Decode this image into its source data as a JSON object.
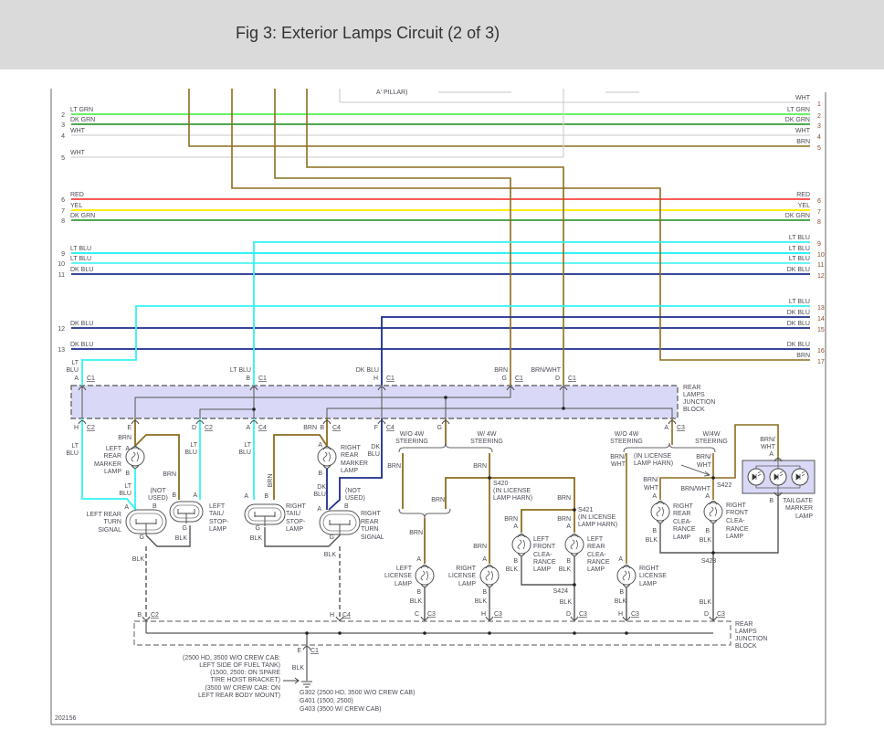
{
  "header": {
    "title": "Fig 3: Exterior Lamps Circuit (2 of 3)"
  },
  "colors": {
    "wht": "#dcdcdc",
    "lt_grn": "#33ee33",
    "dk_grn": "#138a13",
    "brn": "#8c6d1f",
    "red": "#ff2020",
    "yel": "#ffee11",
    "lt_blu": "#33f2f2",
    "dk_blu": "#1c2c8c",
    "blk": "#555555",
    "junction_fill": "#d9d9f7",
    "header_bg": "#dadada"
  },
  "left_wires": [
    {
      "num": "2",
      "label": "LT GRN"
    },
    {
      "num": "3",
      "label": "DK GRN"
    },
    {
      "num": "4",
      "label": "WHT"
    },
    {
      "num": "5",
      "label": "WHT"
    },
    {
      "num": "6",
      "label": "RED"
    },
    {
      "num": "7",
      "label": "YEL"
    },
    {
      "num": "8",
      "label": "DK GRN"
    },
    {
      "num": "9",
      "label": "LT BLU"
    },
    {
      "num": "10",
      "label": "LT BLU"
    },
    {
      "num": "11",
      "label": "DK BLU"
    },
    {
      "num": "12",
      "label": "DK BLU"
    },
    {
      "num": "13",
      "label": "DK BLU"
    }
  ],
  "right_wires": [
    {
      "num": "1",
      "label": "WHT"
    },
    {
      "num": "2",
      "label": "LT GRN"
    },
    {
      "num": "3",
      "label": "DK GRN"
    },
    {
      "num": "4",
      "label": "WHT"
    },
    {
      "num": "5",
      "label": "BRN"
    },
    {
      "num": "6",
      "label": "RED"
    },
    {
      "num": "7",
      "label": "YEL"
    },
    {
      "num": "8",
      "label": "DK GRN"
    },
    {
      "num": "9",
      "label": "LT BLU"
    },
    {
      "num": "10",
      "label": "LT BLU"
    },
    {
      "num": "11",
      "label": "LT BLU"
    },
    {
      "num": "12",
      "label": "DK BLU"
    },
    {
      "num": "13",
      "label": "LT BLU"
    },
    {
      "num": "14",
      "label": "DK BLU"
    },
    {
      "num": "15",
      "label": "DK BLU"
    },
    {
      "num": "16",
      "label": "DK BLU"
    },
    {
      "num": "17",
      "label": "BRN"
    }
  ],
  "a_pillar_note": "A' PILLAR)",
  "junction": [
    "LT",
    "BLU",
    "A",
    "C1",
    "LT BLU",
    "B",
    "C1",
    "DK BLU",
    "H",
    "C1",
    "BRN",
    "G",
    "C1",
    "BRN/WHT",
    "D",
    "C1",
    "REAR",
    "LAMPS",
    "JUNCTION",
    "BLOCK",
    "H",
    "C2",
    "E",
    "D",
    "C2",
    "A",
    "C4",
    "BRN",
    "B",
    "C4",
    "F",
    "C4",
    "G",
    "A",
    "C3"
  ],
  "left_section": [
    "LT",
    "BLU",
    "BRN",
    "A",
    "LEFT",
    "REAR",
    "MARKER",
    "LAMP",
    "B",
    "LT",
    "BLU",
    "BRN",
    "LT",
    "BLU",
    "(NOT",
    "USED)",
    "B",
    "A",
    "A",
    "B",
    "LEFT REAR",
    "TURN",
    "SIGNAL",
    "LEFT",
    "TAIL/",
    "STOP-",
    "LAMP",
    "G",
    "BLK",
    "G",
    "BLK"
  ],
  "right_section": [
    "LT",
    "BLU",
    "BRN",
    "A",
    "B",
    "RIGHT",
    "TAIL/",
    "STOP-",
    "LAMP",
    "G",
    "BLK",
    "A",
    "RIGHT",
    "REAR",
    "MARKER",
    "LAMP",
    "B",
    "DK",
    "BLU",
    "DK",
    "BLU",
    "(NOT",
    "USED)",
    "A",
    "B",
    "RIGHT",
    "REAR",
    "TURN",
    "SIGNAL",
    "BLK",
    "G"
  ],
  "middle_section": [
    "W/O 4W",
    "STEERING",
    "W/ 4W",
    "STEERING",
    "BRN",
    "BRN",
    "S420",
    "(IN LICENSE",
    "LAMP HARN)",
    "BRN",
    "BRN",
    "S421",
    "(IN LICENSE",
    "LAMP HARN)",
    "BRN",
    "A",
    "BRN",
    "A",
    "LEFT",
    "FRONT",
    "CLEA-",
    "RANCE",
    "LAMP",
    "LEFT",
    "REAR",
    "CLEA-",
    "RANCE",
    "LAMP",
    "B",
    "BLK",
    "B",
    "BLK",
    "BRN",
    "A",
    "LEFT",
    "LICENSE",
    "LAMP",
    "B",
    "BLK",
    "C",
    "C3",
    "BRN",
    "A",
    "RIGHT",
    "LICENSE",
    "LAMP",
    "B",
    "BLK",
    "H",
    "C3",
    "S424",
    "BLK",
    "D",
    "C3"
  ],
  "right_area": [
    "W/O 4W",
    "STEERING",
    "W/4W",
    "STEERING",
    "BRN/",
    "WHT",
    "(IN LICENSE",
    "LAMP HARN)",
    "BRN/",
    "WHT",
    "BRN/",
    "WHT",
    "BRN/WHT",
    "S422",
    "A",
    "A",
    "RIGHT",
    "REAR",
    "CLEA-",
    "RANCE",
    "LAMP",
    "RIGHT",
    "FRONT",
    "CLEA-",
    "RANCE",
    "LAMP",
    "B",
    "BLK",
    "B",
    "BLK",
    "S423",
    "BRN/",
    "WHT",
    "A",
    "B",
    "TAILGATE",
    "MARKER",
    "LAMP",
    "A",
    "RIGHT",
    "LICENSE",
    "LAMP",
    "B",
    "BLK",
    "H",
    "C3",
    "BLK",
    "D",
    "C3"
  ],
  "bottom": [
    "B",
    "C2",
    "H",
    "C4",
    "REAR",
    "LAMPS",
    "JUNCTION",
    "BLOCK",
    "E",
    "C1",
    "BLK",
    "(2500 HD, 3500 W/O CREW CAB:",
    "LEFT SIDE OF FUEL TANK)",
    "(1500, 2500: ON SPARE",
    "TIRE HOIST BRACKET)",
    "(3500 W/ CREW CAB: ON",
    "LEFT REAR BODY MOUNT)",
    "G302  (2500 HD, 3500 W/O CREW CAB)",
    "G401  (1500, 2500)",
    "G403  (3500 W/ CREW CAB)",
    "202156"
  ]
}
